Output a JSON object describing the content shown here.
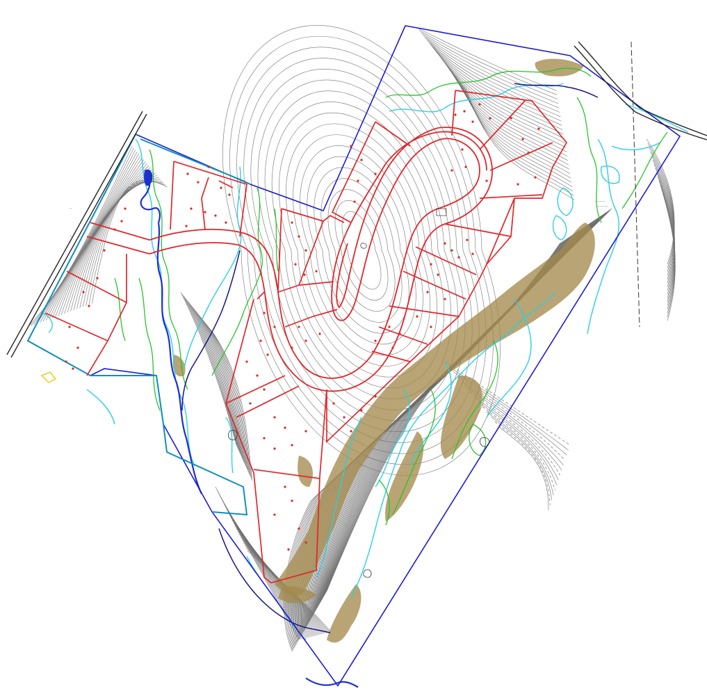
{
  "plan": {
    "legend": {
      "boundary_color": "#1a1ad6",
      "lot_color": "#e0262a",
      "wetland_color": "#2ccfe0",
      "vegetation_color": "#27c42a",
      "stream_color": "#1e2fd0",
      "steep_slope_color": "#a48a4d",
      "contour_color": "#6f6f6f"
    }
  }
}
